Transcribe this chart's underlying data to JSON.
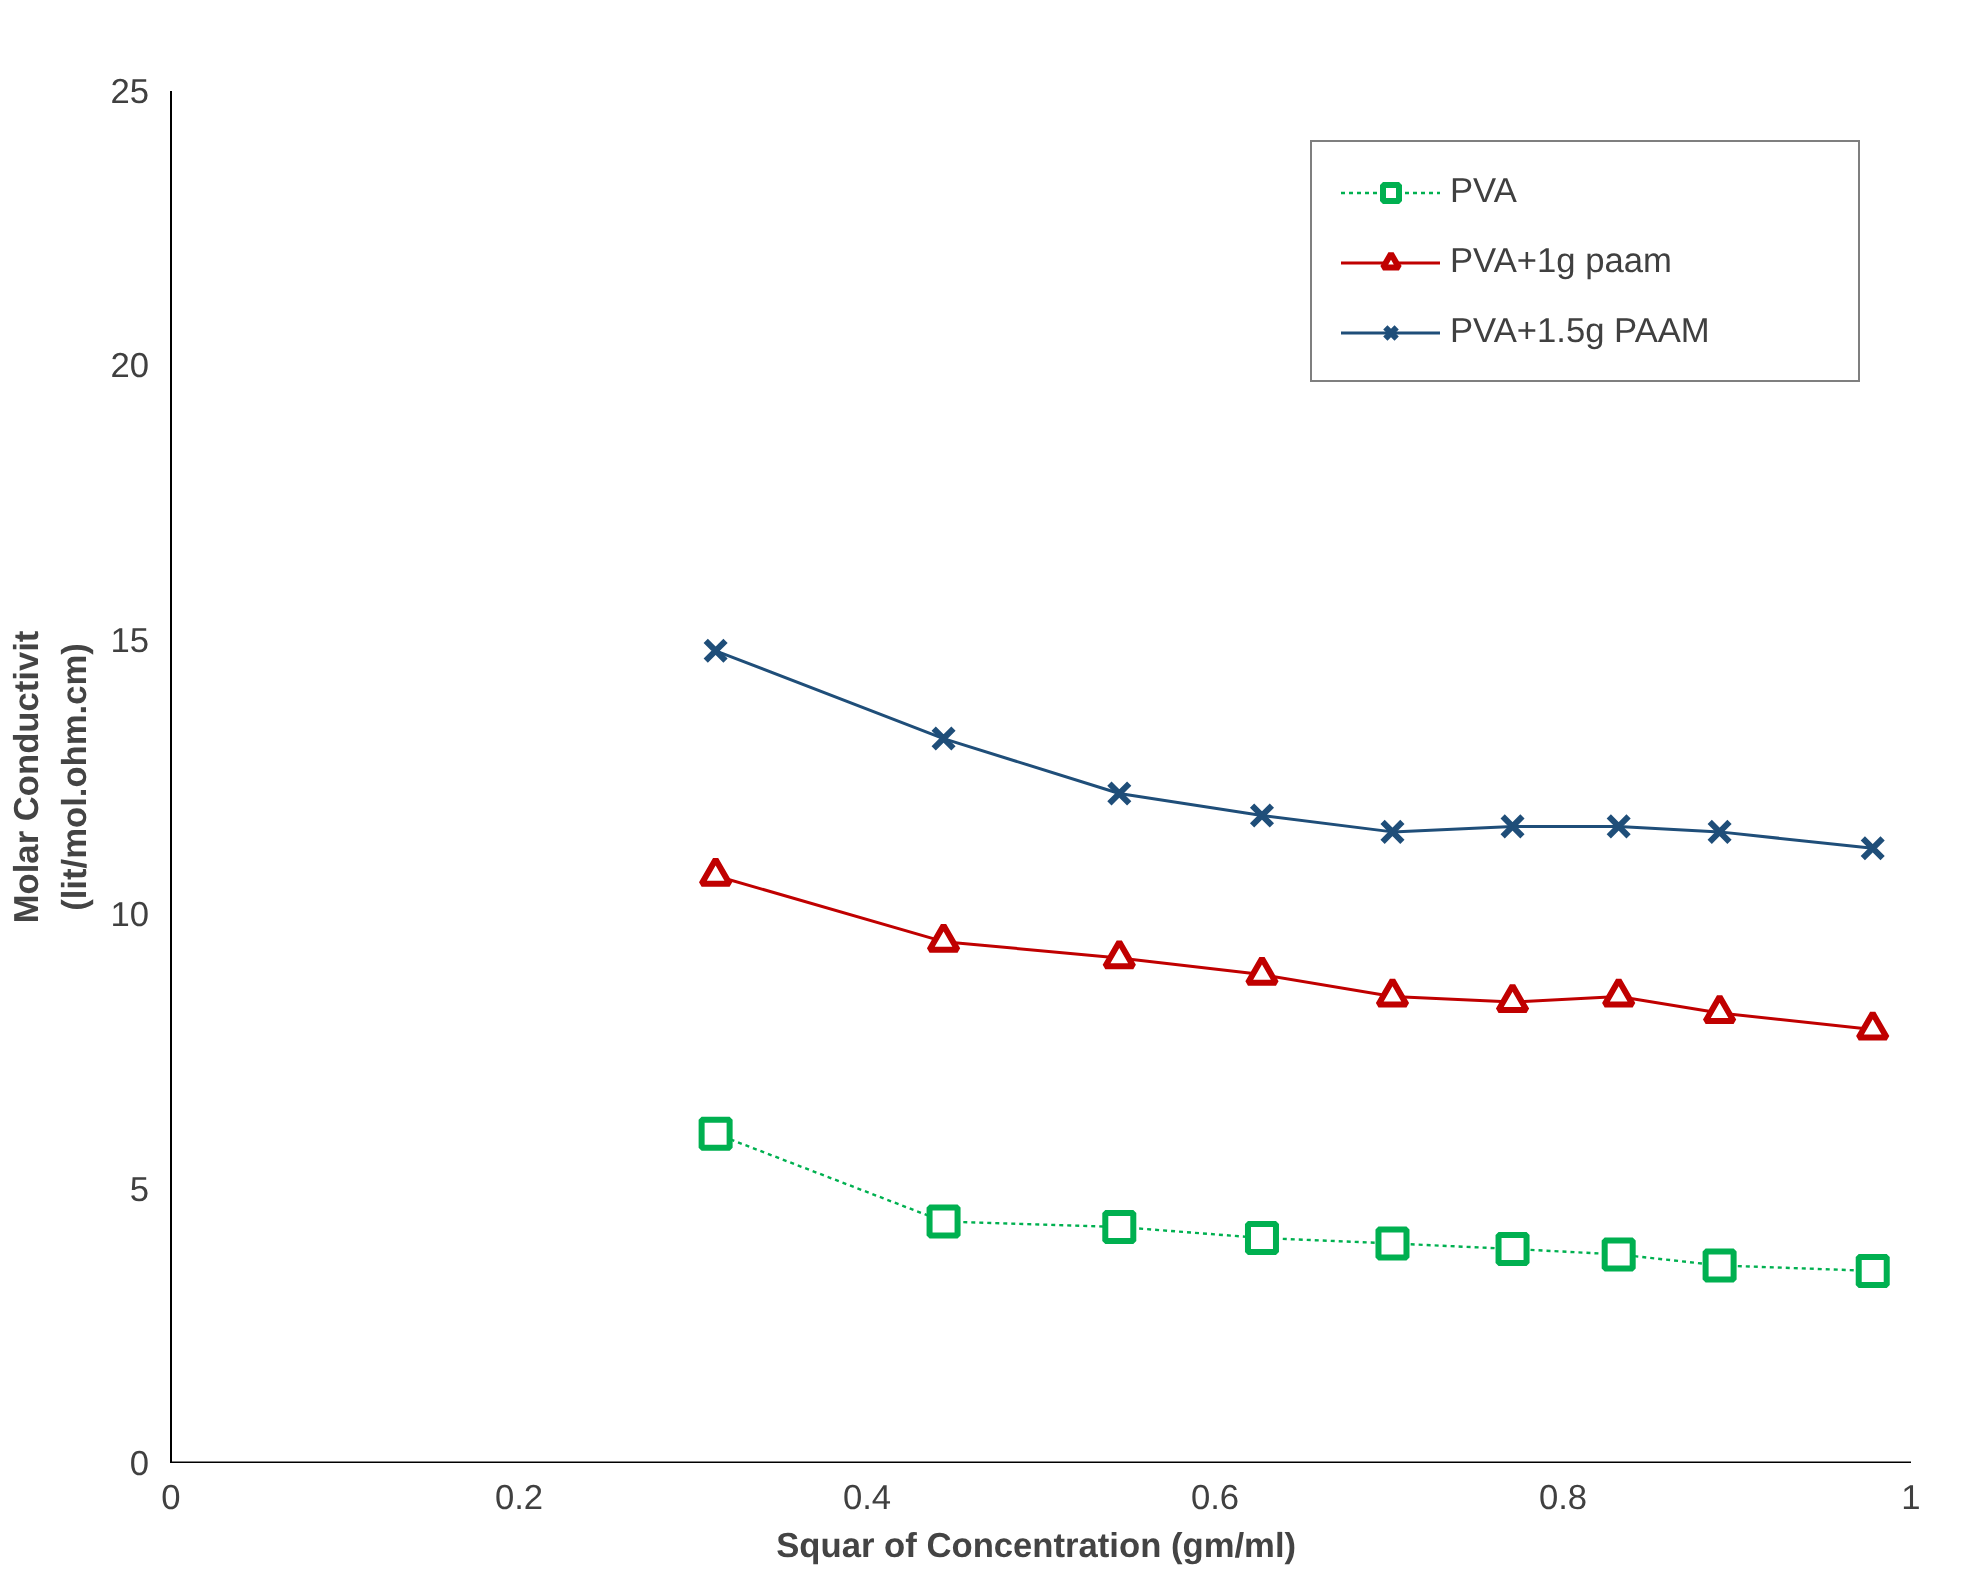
{
  "chart_data": {
    "type": "line",
    "xlabel": "Squar of Concentration  (gm/ml)",
    "ylabel": "Molar Conductivit\n(lit/mol.ohm.cm)",
    "x": [
      0.313,
      0.444,
      0.545,
      0.627,
      0.702,
      0.771,
      0.832,
      0.89,
      0.978
    ],
    "series": [
      {
        "name": "PVA",
        "color": "#00b050",
        "marker": "square",
        "line_style": "dotted",
        "values": [
          6.0,
          4.4,
          4.3,
          4.1,
          4.0,
          3.9,
          3.8,
          3.6,
          3.5
        ]
      },
      {
        "name": "PVA+1g paam",
        "color": "#c00000",
        "marker": "triangle",
        "values": [
          10.7,
          9.5,
          9.2,
          8.9,
          8.5,
          8.4,
          8.5,
          8.2,
          7.9
        ]
      },
      {
        "name": "PVA+1.5g PAAM",
        "color": "#1f4e79",
        "marker": "cross",
        "values": [
          14.8,
          13.2,
          12.2,
          11.8,
          11.5,
          11.6,
          11.6,
          11.5,
          11.2
        ]
      }
    ],
    "xlim": [
      0,
      1
    ],
    "xticks": [
      0,
      0.2,
      0.4,
      0.6,
      0.8,
      1
    ],
    "ylim": [
      0,
      25
    ],
    "yticks": [
      0,
      5,
      10,
      15,
      20,
      25
    ],
    "grid": false,
    "legend": "top right"
  }
}
